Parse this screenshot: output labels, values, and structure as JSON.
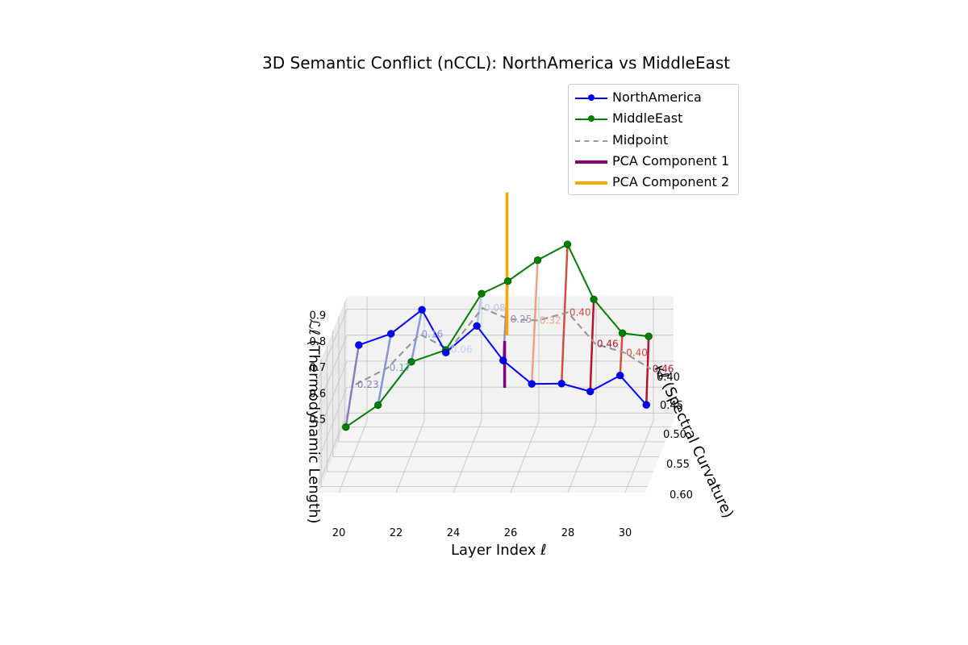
{
  "chart_data": {
    "type": "line",
    "title": "3D Semantic Conflict (nCCL): NorthAmerica vs MiddleEast",
    "xlabel": "Layer Index ℓ",
    "ylabel": "κℓ (Spectral Curvature)",
    "zlabel": "ℒℓ (Thermodynamic Length)",
    "xlim": [
      20,
      30
    ],
    "ylim": [
      0.38,
      0.62
    ],
    "zlim": [
      0.47,
      0.92
    ],
    "xticks": [
      "20",
      "22",
      "24",
      "26",
      "28",
      "30"
    ],
    "yticks": [
      "0.40",
      "0.45",
      "0.50",
      "0.55",
      "0.60"
    ],
    "zticks": [
      "0.5",
      "0.6",
      "0.7",
      "0.8",
      "0.9"
    ],
    "grid": true,
    "legend_position": "top-right",
    "x": [
      20,
      21,
      22,
      23,
      24,
      25,
      26,
      27,
      28,
      29,
      30
    ],
    "series": [
      {
        "name": "NorthAmerica",
        "color": "#0000ff",
        "style": "solid-markers"
      },
      {
        "name": "MiddleEast",
        "color": "#008000",
        "style": "solid-markers"
      },
      {
        "name": "Midpoint",
        "color": "#999999",
        "style": "dashed"
      },
      {
        "name": "PCA Component 1",
        "color": "#800080",
        "style": "solid"
      },
      {
        "name": "PCA Component 2",
        "color": "#ffa500",
        "style": "solid"
      }
    ],
    "distance_labels": [
      "0.23",
      "0.17",
      "0.16",
      "0.06",
      "0.08",
      "0.25",
      "0.32",
      "0.40",
      "0.46",
      "0.40",
      "0.46"
    ],
    "distances": [
      0.23,
      0.17,
      0.16,
      0.06,
      0.08,
      0.25,
      0.32,
      0.4,
      0.46,
      0.4,
      0.46
    ]
  }
}
